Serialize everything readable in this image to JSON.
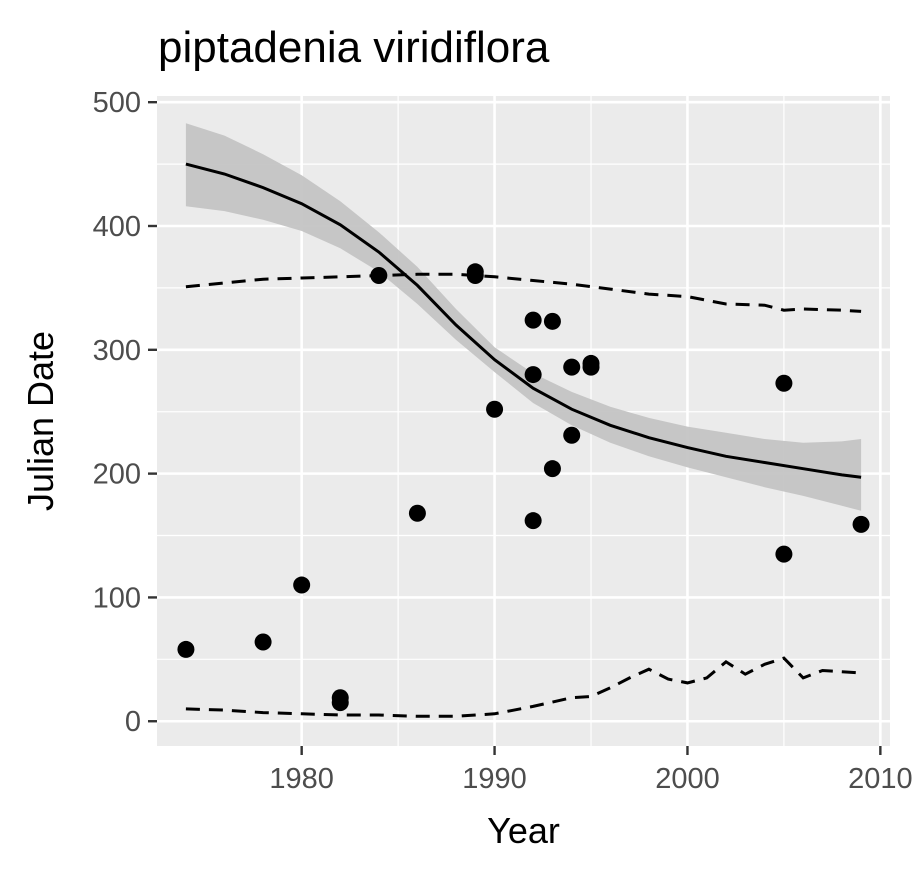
{
  "chart_data": {
    "type": "scatter",
    "title": "piptadenia viridiflora",
    "xlabel": "Year",
    "ylabel": "Julian Date",
    "xlim": [
      1972.5,
      2010.5
    ],
    "ylim": [
      -20,
      505
    ],
    "xticks": [
      1980,
      1990,
      2000,
      2010
    ],
    "yticks": [
      0,
      100,
      200,
      300,
      400,
      500
    ],
    "grid": true,
    "legend": "none",
    "colors": {
      "panel": "#ebebeb",
      "grid": "#ffffff",
      "points": "#000000",
      "fit_line": "#000000",
      "ribbon": "#c4c4c4",
      "dashed": "#000000",
      "tick_text": "#4d4d4d"
    },
    "points": [
      {
        "x": 1974,
        "y": 58
      },
      {
        "x": 1978,
        "y": 64
      },
      {
        "x": 1980,
        "y": 110
      },
      {
        "x": 1982,
        "y": 19
      },
      {
        "x": 1982,
        "y": 15
      },
      {
        "x": 1984,
        "y": 360
      },
      {
        "x": 1986,
        "y": 168
      },
      {
        "x": 1989,
        "y": 363
      },
      {
        "x": 1989,
        "y": 360
      },
      {
        "x": 1990,
        "y": 252
      },
      {
        "x": 1992,
        "y": 324
      },
      {
        "x": 1992,
        "y": 280
      },
      {
        "x": 1992,
        "y": 162
      },
      {
        "x": 1993,
        "y": 323
      },
      {
        "x": 1993,
        "y": 204
      },
      {
        "x": 1994,
        "y": 286
      },
      {
        "x": 1994,
        "y": 231
      },
      {
        "x": 1995,
        "y": 289
      },
      {
        "x": 1995,
        "y": 286
      },
      {
        "x": 2005,
        "y": 273
      },
      {
        "x": 2005,
        "y": 135
      },
      {
        "x": 2009,
        "y": 159
      }
    ],
    "fit": {
      "x": [
        1974,
        1976,
        1978,
        1980,
        1982,
        1984,
        1986,
        1988,
        1990,
        1992,
        1994,
        1996,
        1998,
        2000,
        2002,
        2004,
        2006,
        2008,
        2009
      ],
      "y": [
        450,
        442,
        431,
        418,
        401,
        379,
        352,
        320,
        292,
        269,
        252,
        239,
        229,
        221,
        214,
        209,
        204,
        199,
        197
      ],
      "lower": [
        416,
        412,
        405,
        396,
        382,
        363,
        337,
        308,
        282,
        257,
        239,
        225,
        214,
        205,
        197,
        189,
        182,
        174,
        170
      ],
      "upper": [
        483,
        473,
        458,
        441,
        420,
        395,
        367,
        333,
        302,
        281,
        266,
        254,
        245,
        238,
        233,
        228,
        225,
        226,
        228
      ]
    },
    "upper_dashed": {
      "x": [
        1974,
        1976,
        1978,
        1980,
        1982,
        1984,
        1986,
        1988,
        1990,
        1992,
        1994,
        1996,
        1998,
        2000,
        2002,
        2004,
        2005,
        2006,
        2008,
        2009
      ],
      "y": [
        351,
        354,
        357,
        358,
        359,
        360,
        361,
        361,
        359,
        356,
        353,
        349,
        345,
        343,
        337,
        336,
        332,
        333,
        332,
        331
      ]
    },
    "lower_dashed": {
      "x": [
        1974,
        1976,
        1978,
        1980,
        1982,
        1984,
        1986,
        1988,
        1990,
        1992,
        1994,
        1995,
        1996,
        1997,
        1998,
        1999,
        2000,
        2001,
        2002,
        2003,
        2004,
        2005,
        2006,
        2007,
        2008,
        2009
      ],
      "y": [
        10,
        9,
        7,
        6,
        5,
        5,
        4,
        4,
        6,
        12,
        19,
        20,
        27,
        35,
        42,
        34,
        31,
        35,
        48,
        38,
        46,
        51,
        35,
        41,
        40,
        39
      ]
    }
  }
}
